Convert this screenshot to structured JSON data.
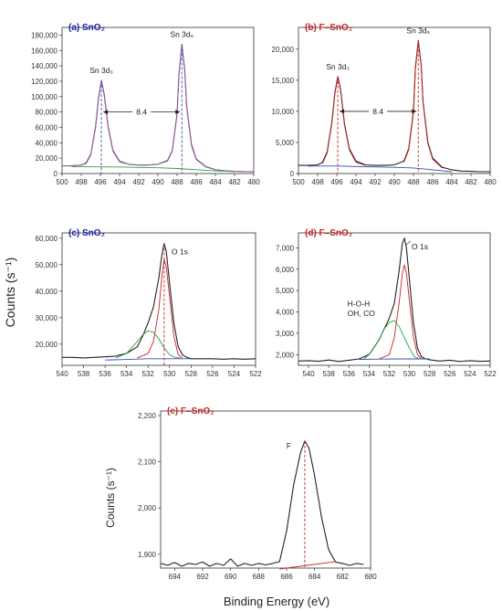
{
  "figure": {
    "ylabel_main": "Counts (s⁻¹)",
    "ylabel_e": "Counts (s⁻¹)",
    "xlabel": "Binding Energy (eV)"
  },
  "chart_data": [
    {
      "id": "a",
      "type": "line",
      "title": "(a) SnO₂",
      "title_color": "#1a1aa6",
      "xlim": [
        500,
        480
      ],
      "ylim": [
        0,
        190000
      ],
      "xticks": [
        500,
        498,
        496,
        494,
        492,
        490,
        488,
        486,
        484,
        482,
        480
      ],
      "yticks": [
        0,
        20000,
        40000,
        60000,
        80000,
        100000,
        120000,
        140000,
        160000,
        180000
      ],
      "ytick_labels": [
        "0",
        "20,000",
        "40,000",
        "60,000",
        "80,000",
        "100,000",
        "120,000",
        "140,000",
        "160,000",
        "180,000"
      ],
      "peaks": [
        {
          "label": "Sn 3d₃",
          "position": 495.9,
          "height": 121000
        },
        {
          "label": "Sn 3d₅",
          "position": 487.5,
          "height": 168000
        }
      ],
      "annotations": [
        {
          "text": "8.4",
          "from": 495.9,
          "to": 487.5,
          "y": 80000
        }
      ],
      "series": [
        {
          "role": "measured",
          "color": "#555555",
          "x": [
            500,
            499,
            498,
            497.5,
            497,
            496.5,
            496.2,
            495.9,
            495.6,
            495.2,
            494.7,
            494,
            493,
            492,
            491,
            490,
            489,
            488.5,
            488,
            487.8,
            487.5,
            487.2,
            487,
            486.5,
            486,
            485,
            484,
            483,
            482,
            481,
            480
          ],
          "y": [
            10000,
            10000,
            11000,
            14000,
            25000,
            62000,
            98000,
            121000,
            103000,
            62000,
            30000,
            16000,
            12000,
            11000,
            11000,
            12000,
            17000,
            30000,
            78000,
            130000,
            168000,
            135000,
            88000,
            38000,
            19000,
            9000,
            5000,
            3500,
            3000,
            2500,
            2500
          ]
        },
        {
          "role": "fit",
          "color": "#9a5aa6",
          "x": [
            500,
            499,
            498,
            497.5,
            497,
            496.5,
            496.2,
            495.9,
            495.6,
            495.2,
            494.7,
            494,
            493,
            492,
            491,
            490,
            489,
            488.5,
            488,
            487.8,
            487.5,
            487.2,
            487,
            486.5,
            486,
            485,
            484,
            483,
            482,
            481,
            480
          ],
          "y": [
            10000,
            10000,
            11000,
            13000,
            24000,
            60000,
            96000,
            120000,
            101000,
            60000,
            29000,
            15000,
            12000,
            11000,
            11000,
            12000,
            16000,
            29000,
            76000,
            128000,
            166000,
            133000,
            86000,
            36000,
            18000,
            8500,
            5000,
            3500,
            3000,
            2500,
            2500
          ]
        },
        {
          "role": "background",
          "color": "#2e9e3c",
          "x": [
            499,
            497.5,
            496,
            494,
            492,
            490,
            488,
            486,
            484,
            482
          ],
          "y": [
            9000,
            8800,
            8700,
            8500,
            8000,
            7500,
            6500,
            5000,
            3500,
            2500
          ]
        }
      ]
    },
    {
      "id": "b",
      "type": "line",
      "title": "(b) F–SnO₂",
      "title_color": "#c42525",
      "xlim": [
        500,
        480
      ],
      "ylim": [
        0,
        23500
      ],
      "xticks": [
        500,
        498,
        496,
        494,
        492,
        490,
        488,
        486,
        484,
        482,
        480
      ],
      "yticks": [
        0,
        5000,
        10000,
        15000,
        20000
      ],
      "ytick_labels": [
        "0",
        "5,000",
        "10,000",
        "15,000",
        "20,000"
      ],
      "peaks": [
        {
          "label": "Sn 3d₃",
          "position": 495.9,
          "height": 15600
        },
        {
          "label": "Sn 3d₅",
          "position": 487.5,
          "height": 21400
        }
      ],
      "annotations": [
        {
          "text": "8.4",
          "from": 495.9,
          "to": 487.5,
          "y": 10000
        }
      ],
      "series": [
        {
          "role": "measured",
          "color": "#222222",
          "x": [
            500,
            499,
            498,
            497.5,
            497,
            496.5,
            496.2,
            495.9,
            495.6,
            495.2,
            494.7,
            494,
            493,
            492,
            491,
            490,
            489,
            488.5,
            488,
            487.8,
            487.5,
            487.2,
            487,
            486.5,
            486,
            485,
            484,
            483,
            482,
            481,
            480
          ],
          "y": [
            1300,
            1300,
            1400,
            1800,
            3500,
            8500,
            13000,
            15600,
            13500,
            8000,
            4000,
            2000,
            1400,
            1300,
            1300,
            1400,
            2000,
            4000,
            10000,
            17000,
            21400,
            17500,
            11500,
            5000,
            2500,
            1000,
            600,
            400,
            350,
            300,
            300
          ]
        },
        {
          "role": "fit",
          "color": "#c42525",
          "x": [
            497.5,
            497,
            496.5,
            496.2,
            495.9,
            495.6,
            495.2,
            494.7,
            494,
            493
          ],
          "y": [
            1600,
            3300,
            8300,
            12800,
            15400,
            13300,
            7800,
            3800,
            1800,
            1300
          ]
        },
        {
          "role": "fit",
          "color": "#c42525",
          "x": [
            489,
            488.5,
            488,
            487.8,
            487.5,
            487.2,
            487,
            486.5,
            486,
            485
          ],
          "y": [
            1800,
            3800,
            9800,
            16800,
            21200,
            17300,
            11300,
            4800,
            2300,
            900
          ]
        },
        {
          "role": "background",
          "color": "#2b4fc2",
          "x": [
            499,
            496,
            493,
            490,
            488,
            486,
            484
          ],
          "y": [
            1200,
            1200,
            1100,
            1000,
            900,
            600,
            300
          ]
        }
      ]
    },
    {
      "id": "c",
      "type": "line",
      "title": "(c) SnO₂",
      "title_color": "#1a1aa6",
      "xlim": [
        540,
        522
      ],
      "ylim": [
        12000,
        62000
      ],
      "xticks": [
        540,
        538,
        536,
        534,
        532,
        530,
        528,
        526,
        524,
        522
      ],
      "yticks": [
        20000,
        30000,
        40000,
        50000,
        60000
      ],
      "ytick_labels": [
        "20,000",
        "30,000",
        "40,000",
        "50,000",
        "60,000"
      ],
      "peaks": [
        {
          "label": "O 1s",
          "position": 530.5,
          "height": 58000
        }
      ],
      "annotations": [],
      "series": [
        {
          "role": "measured",
          "color": "#222222",
          "x": [
            540,
            539,
            538,
            537,
            536,
            535,
            534,
            533,
            532.5,
            532,
            531.5,
            531,
            530.7,
            530.5,
            530.3,
            530,
            529.6,
            529.2,
            528.8,
            528.4,
            528,
            527,
            526,
            525,
            524,
            523,
            522
          ],
          "y": [
            15000,
            15000,
            14800,
            15000,
            15200,
            15500,
            16500,
            19000,
            23000,
            28000,
            34000,
            45000,
            54000,
            58000,
            55000,
            43000,
            28000,
            19000,
            16000,
            15000,
            14500,
            14500,
            14500,
            14300,
            14500,
            14300,
            14500
          ]
        },
        {
          "role": "fit",
          "color": "#c42525",
          "x": [
            533,
            532,
            531.5,
            531,
            530.7,
            530.5,
            530.3,
            530,
            529.6,
            529.2,
            528.8
          ],
          "y": [
            14800,
            16500,
            21000,
            33000,
            46000,
            52000,
            49000,
            38000,
            23000,
            16000,
            14800
          ]
        },
        {
          "role": "fit",
          "color": "#2e9e3c",
          "x": [
            535,
            534,
            533,
            532.5,
            532,
            531.5,
            531,
            530.5,
            530,
            529.5,
            529
          ],
          "y": [
            14800,
            16500,
            21000,
            23500,
            25000,
            24500,
            22000,
            18500,
            16000,
            15000,
            14800
          ]
        },
        {
          "role": "background",
          "color": "#2b4fc2",
          "x": [
            536,
            534,
            532,
            530,
            528
          ],
          "y": [
            14000,
            14200,
            14500,
            14500,
            14500
          ]
        }
      ]
    },
    {
      "id": "d",
      "type": "line",
      "title": "(d) F–SnO₂",
      "title_color": "#c42525",
      "xlim": [
        541,
        522
      ],
      "ylim": [
        1500,
        7700
      ],
      "xticks": [
        540,
        538,
        536,
        534,
        532,
        530,
        528,
        526,
        524,
        522
      ],
      "yticks": [
        2000,
        3000,
        4000,
        5000,
        6000,
        7000
      ],
      "ytick_labels": [
        "2,000",
        "3,000",
        "4,000",
        "5,000",
        "6,000",
        "7,000"
      ],
      "peaks": [
        {
          "label": "O 1s",
          "position": 530.5,
          "height": 7450
        },
        {
          "label": "H-O-H",
          "position": 531.8,
          "height": 3500
        },
        {
          "label": "OH, CO",
          "position": 531.8,
          "height": 3500
        }
      ],
      "annotations": [],
      "series": [
        {
          "role": "measured",
          "color": "#222222",
          "x": [
            541,
            540,
            539,
            538,
            537,
            536,
            535,
            534,
            533,
            532.5,
            532,
            531.5,
            531,
            530.7,
            530.5,
            530.3,
            530,
            529.6,
            529.2,
            528.8,
            528.4,
            528,
            527,
            526,
            525,
            524,
            523,
            522
          ],
          "y": [
            1700,
            1720,
            1690,
            1750,
            1680,
            1740,
            1800,
            2000,
            2700,
            3200,
            3700,
            4400,
            6000,
            7200,
            7450,
            7000,
            5500,
            3500,
            2300,
            1900,
            1800,
            1760,
            1700,
            1740,
            1680,
            1720,
            1690,
            1700
          ]
        },
        {
          "role": "fit",
          "color": "#c42525",
          "x": [
            533,
            532,
            531.5,
            531,
            530.7,
            530.5,
            530.3,
            530,
            529.6,
            529.2,
            528.8
          ],
          "y": [
            1800,
            2000,
            2800,
            4500,
            5800,
            6200,
            5800,
            4500,
            2800,
            2000,
            1800
          ]
        },
        {
          "role": "fit",
          "color": "#2e9e3c",
          "x": [
            534.5,
            534,
            533,
            532.5,
            532,
            531.5,
            531,
            530.5,
            530,
            529.5,
            529
          ],
          "y": [
            1800,
            2000,
            2700,
            3200,
            3500,
            3600,
            3300,
            2800,
            2300,
            1900,
            1800
          ]
        },
        {
          "role": "background",
          "color": "#2b4fc2",
          "x": [
            535,
            533,
            531,
            529,
            528
          ],
          "y": [
            1780,
            1790,
            1800,
            1800,
            1800
          ]
        }
      ]
    },
    {
      "id": "e",
      "type": "line",
      "title": "(e) F–SnO₂",
      "title_color": "#c42525",
      "xlim": [
        695,
        680
      ],
      "ylim": [
        1870,
        2210
      ],
      "xticks": [
        694,
        692,
        690,
        688,
        686,
        684,
        682,
        680
      ],
      "yticks": [
        1900,
        2000,
        2100,
        2200
      ],
      "ytick_labels": [
        "1,900",
        "2,000",
        "2,100",
        "2,200"
      ],
      "peaks": [
        {
          "label": "F",
          "position": 684.7,
          "height": 2145
        }
      ],
      "annotations": [],
      "series": [
        {
          "role": "measured",
          "color": "#222222",
          "x": [
            695,
            694.5,
            694,
            693.5,
            693,
            692.5,
            692,
            691.5,
            691,
            690.5,
            690,
            689.5,
            689,
            688.5,
            688,
            687.5,
            687,
            686.5,
            686,
            685.5,
            685,
            684.7,
            684.4,
            684,
            683.5,
            683,
            682.5,
            682,
            681.5,
            681,
            680.5
          ],
          "y": [
            1880,
            1876,
            1882,
            1874,
            1880,
            1878,
            1883,
            1874,
            1880,
            1876,
            1890,
            1874,
            1880,
            1876,
            1880,
            1877,
            1880,
            1884,
            1950,
            2050,
            2120,
            2145,
            2130,
            2070,
            1980,
            1910,
            1883,
            1880,
            1876,
            1880,
            1878
          ]
        },
        {
          "role": "background",
          "color": "#c42525",
          "x": [
            686.5,
            682.5
          ],
          "y": [
            1868,
            1884
          ]
        }
      ]
    }
  ]
}
